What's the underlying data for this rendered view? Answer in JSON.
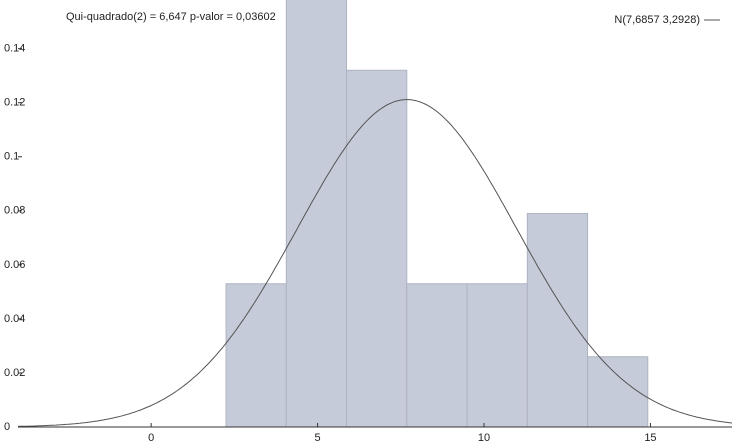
{
  "chart_data": {
    "type": "histogram",
    "annotation": "Qui-quadrado(2) = 6,647 p-valor = 0,03602",
    "bins": [
      2.25,
      4.06,
      5.87,
      7.68,
      9.49,
      11.3,
      13.11,
      14.92
    ],
    "values": [
      0.053,
      0.159,
      0.132,
      0.053,
      0.053,
      0.079,
      0.026
    ],
    "color": "#c6cbd9",
    "normal": {
      "name": "N(7,6857 3,2928)",
      "mean": 7.6857,
      "sd": 3.2928,
      "color": "#555555"
    },
    "xlim": [
      -4.0,
      17.45
    ],
    "xticks": [
      0,
      5,
      10,
      15
    ],
    "ylim": [
      0,
      0.158
    ],
    "yticks": [
      0,
      0.02,
      0.04,
      0.06,
      0.08,
      0.1,
      0.12,
      0.14
    ]
  }
}
